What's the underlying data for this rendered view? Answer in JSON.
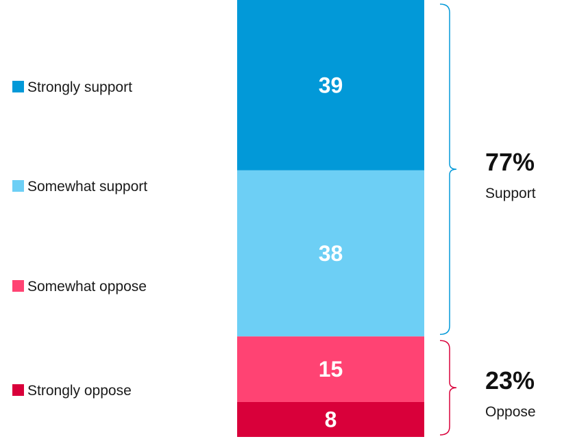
{
  "chart_data": {
    "type": "bar",
    "stacked": true,
    "orientation": "vertical",
    "unit": "%",
    "grid": false,
    "legend_position": "left",
    "series": [
      {
        "name": "Strongly support",
        "value": 39,
        "color": "#0299d8"
      },
      {
        "name": "Somewhat support",
        "value": 38,
        "color": "#6dcff5"
      },
      {
        "name": "Somewhat oppose",
        "value": 15,
        "color": "#ff4373"
      },
      {
        "name": "Strongly oppose",
        "value": 8,
        "color": "#d9003a"
      }
    ],
    "groups": [
      {
        "pct_label": "77%",
        "label": "Support",
        "members": [
          "Strongly support",
          "Somewhat support"
        ],
        "bracket_color": "#0299d8"
      },
      {
        "pct_label": "23%",
        "label": "Oppose",
        "members": [
          "Somewhat oppose",
          "Strongly oppose"
        ],
        "bracket_color": "#d9003a"
      }
    ]
  }
}
